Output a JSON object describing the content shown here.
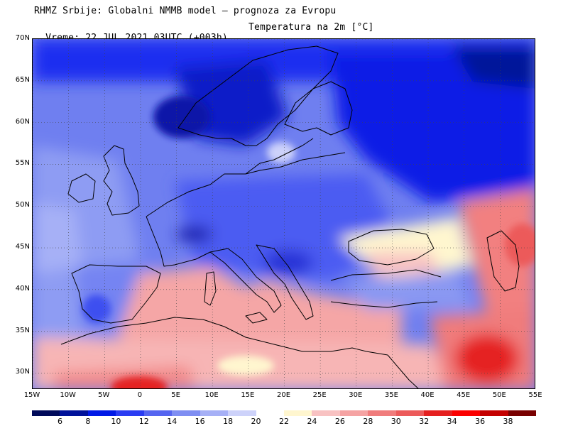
{
  "header": {
    "title_line1": "RHMZ Srbije: Globalni NMMB model — prognoza za Evropu",
    "title_line2": "Vreme: 22 JUL 2021 03UTC (+003h)",
    "parameter": "Temperatura na 2m [°C]"
  },
  "axes": {
    "lat_labels": [
      "70N",
      "65N",
      "60N",
      "55N",
      "50N",
      "45N",
      "40N",
      "35N",
      "30N"
    ],
    "lat_values": [
      70,
      65,
      60,
      55,
      50,
      45,
      40,
      35,
      30
    ],
    "lon_labels": [
      "15W",
      "10W",
      "5W",
      "0",
      "5E",
      "10E",
      "15E",
      "20E",
      "25E",
      "30E",
      "35E",
      "40E",
      "45E",
      "50E",
      "55E"
    ],
    "lon_values": [
      -15,
      -10,
      -5,
      0,
      5,
      10,
      15,
      20,
      25,
      30,
      35,
      40,
      45,
      50,
      55
    ],
    "lat_range": [
      28,
      70
    ],
    "lon_range": [
      -15,
      55
    ],
    "grid": true
  },
  "legend": {
    "labels": [
      "6",
      "8",
      "10",
      "12",
      "14",
      "16",
      "18",
      "20",
      "22",
      "24",
      "26",
      "28",
      "30",
      "32",
      "34",
      "36",
      "38"
    ],
    "colors": [
      "#000a5a",
      "#00129a",
      "#0019e6",
      "#2a3cf2",
      "#5565f0",
      "#7f8ef2",
      "#a6b0f6",
      "#cdd2fa",
      "#ffffff",
      "#fff6cf",
      "#f8c2c2",
      "#f5a3a3",
      "#f07c7c",
      "#ec5a5a",
      "#e52020",
      "#fb0000",
      "#c40000",
      "#780000"
    ]
  }
}
